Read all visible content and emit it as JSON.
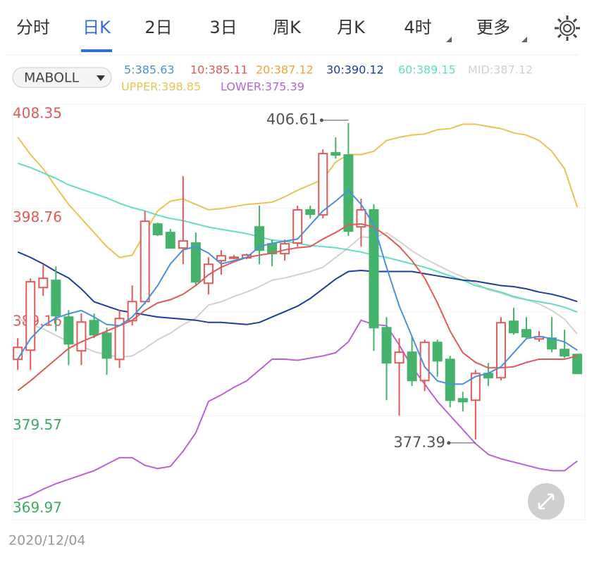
{
  "tabs": [
    "分时",
    "日K",
    "2日",
    "3日",
    "周K",
    "月K",
    "4时",
    "更多"
  ],
  "active_tab": 1,
  "selector": "MABOLL",
  "date": "2020/12/04",
  "chart_data": {
    "type": "candlestick",
    "ylim": [
      369.97,
      408.35
    ],
    "yticks": [
      408.35,
      398.76,
      389.16,
      379.57,
      369.97
    ],
    "ytick_colors": [
      "#e05a5a",
      "#e05a5a",
      "#e05a5a",
      "#3daa66",
      "#3daa66"
    ],
    "grid": true,
    "up_color": "#e05a5a",
    "down_color": "#45b36b",
    "open": [
      384.78,
      385.63,
      391.42,
      392.08,
      388.69,
      385.57,
      388.36,
      387.19,
      384.78,
      388.36,
      390.12,
      397.28,
      396.5,
      395.07,
      395.53,
      391.81,
      393.9,
      394.16,
      394.16,
      397.02,
      395.46,
      394.55,
      395.53,
      398.59,
      398.13,
      403.86,
      403.66,
      397.02,
      398.59,
      387.71,
      384.46,
      385.44,
      382.83,
      386.35,
      384.78,
      381.14,
      381.01,
      383.48,
      383.09,
      388.3,
      387.52,
      386.67,
      386.74,
      385.7,
      385.24
    ],
    "high": [
      386.74,
      392.27,
      393.57,
      393.38,
      389.34,
      389.02,
      389.02,
      387.71,
      389.34,
      391.62,
      398.46,
      397.41,
      396.83,
      401.71,
      396.5,
      394.22,
      394.87,
      394.42,
      394.55,
      398.98,
      395.85,
      395.85,
      398.98,
      398.98,
      404.18,
      405.29,
      406.61,
      399.63,
      399.11,
      388.69,
      386.74,
      386.87,
      386.61,
      386.61,
      385.11,
      381.79,
      383.81,
      384.46,
      388.69,
      389.54,
      388.69,
      387.39,
      388.69,
      387.52,
      385.24
    ],
    "low": [
      383.81,
      383.81,
      390.64,
      387.39,
      384.26,
      384.26,
      386.74,
      383.35,
      384.0,
      387.91,
      389.86,
      396.18,
      395.07,
      393.57,
      391.62,
      390.77,
      392.6,
      394.03,
      394.03,
      393.57,
      393.38,
      393.9,
      395.2,
      397.8,
      397.8,
      403.34,
      396.18,
      395.2,
      385.57,
      381.01,
      379.58,
      382.31,
      381.85,
      383.16,
      380.36,
      379.97,
      377.39,
      382.31,
      382.83,
      387.06,
      386.74,
      386.41,
      385.44,
      384.91,
      383.48
    ],
    "close": [
      385.89,
      391.95,
      392.27,
      388.82,
      386.22,
      388.23,
      387.06,
      384.91,
      388.56,
      390.12,
      397.54,
      396.31,
      395.07,
      395.72,
      391.95,
      393.57,
      394.35,
      394.22,
      394.42,
      394.87,
      394.55,
      395.46,
      398.59,
      398.19,
      403.79,
      403.66,
      396.63,
      398.59,
      387.71,
      384.46,
      385.44,
      382.83,
      386.35,
      384.65,
      381.01,
      380.88,
      383.48,
      383.09,
      388.17,
      387.26,
      386.87,
      386.87,
      385.76,
      385.11,
      383.48
    ],
    "high_label_index": 26,
    "low_label_index": 36,
    "indicators": [
      {
        "label": "5:385.63",
        "color": "#4d8fd9",
        "values": [
          384.8,
          386.7,
          387.9,
          388.6,
          389.0,
          389.3,
          388.7,
          388.0,
          387.9,
          388.7,
          390.0,
          391.6,
          393.6,
          394.9,
          395.2,
          394.6,
          393.6,
          393.9,
          394.2,
          395.2,
          395.5,
          395.7,
          395.9,
          397.2,
          398.5,
          399.4,
          400.4,
          399.1,
          397.2,
          393.3,
          389.7,
          386.9,
          384.1,
          382.8,
          382.5,
          382.5,
          383.2,
          383.5,
          384.1,
          385.4,
          386.7,
          386.9,
          386.7,
          386.4,
          385.63
        ]
      },
      {
        "label": "10:385.11",
        "color": "#e05a5a",
        "values": [
          381.9,
          382.8,
          383.8,
          384.8,
          385.8,
          386.4,
          386.9,
          387.4,
          387.9,
          388.4,
          389.3,
          390.0,
          390.3,
          390.8,
          391.6,
          392.6,
          393.3,
          393.8,
          394.2,
          394.4,
          394.6,
          394.9,
          395.1,
          395.2,
          395.9,
          396.5,
          397.2,
          397.3,
          397.0,
          396.2,
          395.2,
          393.9,
          392.3,
          390.0,
          387.4,
          385.4,
          384.5,
          384.0,
          384.0,
          384.1,
          384.5,
          384.8,
          384.8,
          384.8,
          385.11
        ]
      },
      {
        "label": "20:387.12",
        "color": "#f0a23a"
      },
      {
        "label": "30:390.12",
        "color": "#1f3d9c",
        "values": [
          394.7,
          394.2,
          393.6,
          392.9,
          392.3,
          391.3,
          390.1,
          389.7,
          389.3,
          389.1,
          388.9,
          388.7,
          388.6,
          388.5,
          388.4,
          388.2,
          388.2,
          388.1,
          388.0,
          388.2,
          388.7,
          389.2,
          389.7,
          390.4,
          391.3,
          392.2,
          392.9,
          393.0,
          392.9,
          392.9,
          392.9,
          392.9,
          392.7,
          392.5,
          392.3,
          392.1,
          392.0,
          391.8,
          391.6,
          391.5,
          391.3,
          391.0,
          390.8,
          390.5,
          390.12
        ]
      },
      {
        "label": "60:389.15",
        "color": "#62dcc2",
        "values": [
          402.9,
          402.5,
          402.0,
          401.5,
          400.9,
          400.5,
          400.1,
          399.7,
          399.2,
          398.8,
          398.5,
          398.1,
          397.8,
          397.6,
          397.3,
          397.0,
          396.8,
          396.6,
          396.4,
          396.1,
          395.8,
          395.7,
          395.5,
          395.3,
          395.2,
          395.1,
          394.9,
          394.7,
          394.4,
          394.2,
          393.9,
          393.6,
          393.3,
          392.9,
          392.5,
          392.1,
          391.6,
          391.3,
          391.0,
          390.6,
          390.3,
          390.1,
          389.9,
          389.6,
          389.15
        ]
      },
      {
        "label": "MID:387.12",
        "color": "#d2d2d2",
        "values": [
          388.6,
          388.0,
          387.6,
          387.0,
          386.4,
          386.0,
          385.5,
          385.2,
          385.0,
          385.1,
          385.8,
          386.6,
          387.2,
          388.0,
          388.6,
          389.8,
          390.1,
          390.6,
          391.0,
          391.5,
          392.1,
          392.3,
          392.6,
          392.9,
          393.3,
          394.2,
          395.1,
          396.1,
          396.0,
          396.5,
          395.7,
          394.8,
          394.1,
          393.5,
          392.9,
          392.4,
          391.8,
          391.2,
          390.9,
          390.5,
          390.3,
          389.9,
          389.3,
          388.5,
          387.12
        ]
      },
      {
        "label": "UPPER:398.85",
        "color": "#eac356",
        "values": [
          405.3,
          403.7,
          402.4,
          400.7,
          399.1,
          397.8,
          396.5,
          395.2,
          394.2,
          394.4,
          396.5,
          398.5,
          399.4,
          399.6,
          399.1,
          398.6,
          398.7,
          398.9,
          399.1,
          399.2,
          399.3,
          399.8,
          400.4,
          400.9,
          401.4,
          403.0,
          403.7,
          403.7,
          404.0,
          405.0,
          405.3,
          405.5,
          405.6,
          406.0,
          406.1,
          406.5,
          406.5,
          406.3,
          406.1,
          405.7,
          405.5,
          405.0,
          404.0,
          402.4,
          398.85
        ]
      },
      {
        "label": "LOWER:375.39",
        "color": "#b863d8",
        "values": [
          371.8,
          372.2,
          372.8,
          373.3,
          373.7,
          374.1,
          374.5,
          375.1,
          375.7,
          375.7,
          375.0,
          374.7,
          374.9,
          376.3,
          378.0,
          380.9,
          381.5,
          382.2,
          382.8,
          383.8,
          384.8,
          384.8,
          384.7,
          384.9,
          385.1,
          385.4,
          386.4,
          388.4,
          388.0,
          387.9,
          386.1,
          384.1,
          382.5,
          380.9,
          379.6,
          378.3,
          377.0,
          376.0,
          375.6,
          375.3,
          375.0,
          374.7,
          374.5,
          374.5,
          375.39
        ]
      }
    ]
  }
}
